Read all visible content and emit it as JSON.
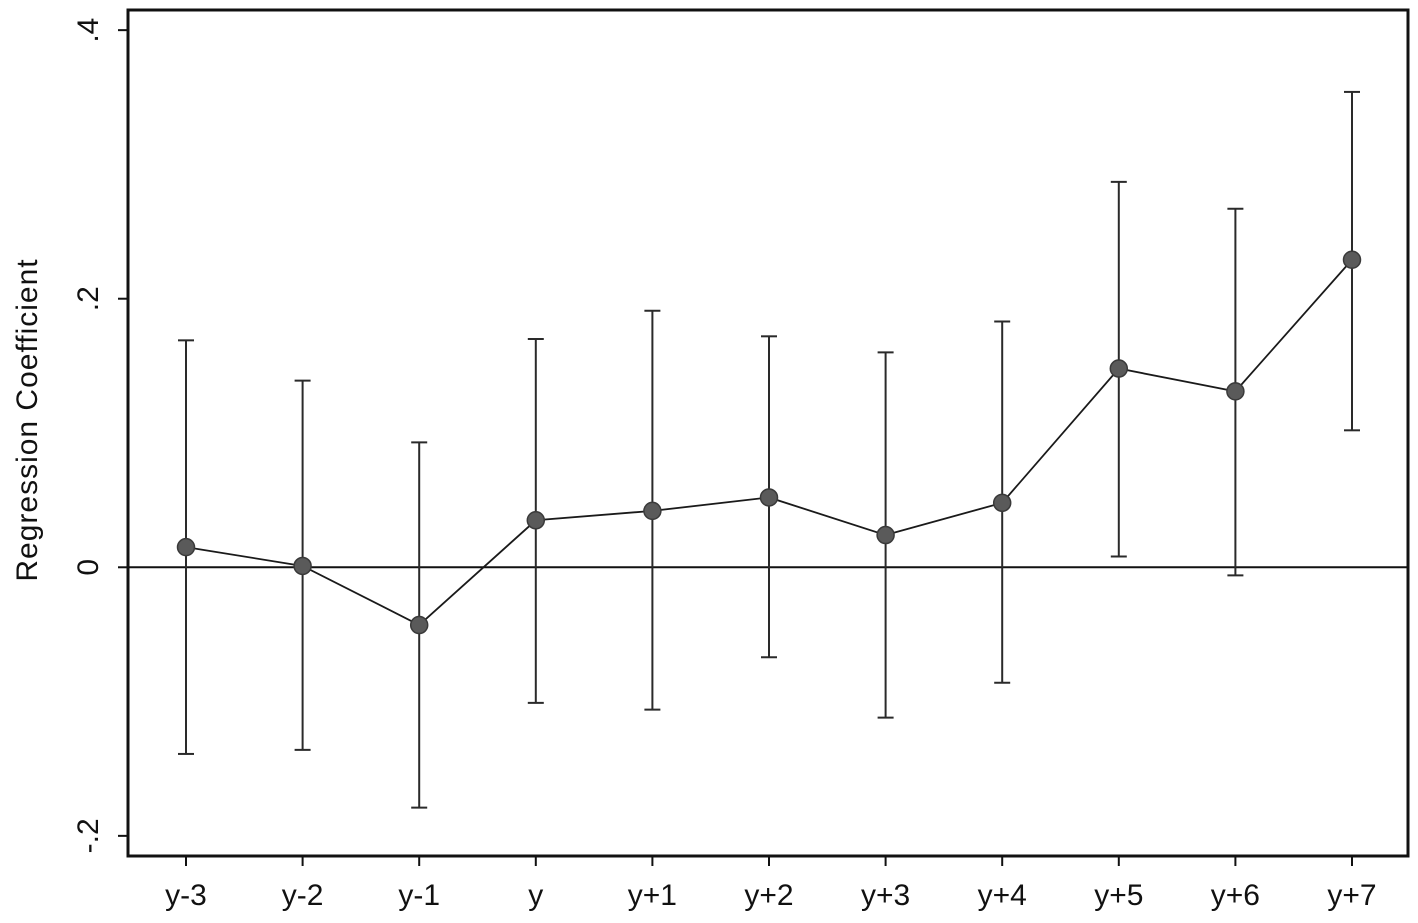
{
  "chart_data": {
    "type": "scatter",
    "title": "",
    "xlabel": "",
    "ylabel": "Regression Coefficient",
    "categories": [
      "y-3",
      "y-2",
      "y-1",
      "y",
      "y+1",
      "y+2",
      "y+3",
      "y+4",
      "y+5",
      "y+6",
      "y+7"
    ],
    "y_ticks": [
      -0.2,
      0,
      0.2,
      0.4
    ],
    "y_tick_labels": [
      "-.2",
      "0",
      ".2",
      ".4"
    ],
    "ylim": [
      -0.215,
      0.415
    ],
    "grid": false,
    "reference_line_y": 0,
    "connected_points": true,
    "series": [
      {
        "values": [
          0.015,
          0.001,
          -0.043,
          0.035,
          0.042,
          0.052,
          0.024,
          0.048,
          0.148,
          0.131,
          0.229
        ],
        "ci_lower": [
          -0.139,
          -0.136,
          -0.179,
          -0.101,
          -0.106,
          -0.067,
          -0.112,
          -0.086,
          0.008,
          -0.006,
          0.102
        ],
        "ci_upper": [
          0.169,
          0.139,
          0.093,
          0.17,
          0.191,
          0.172,
          0.16,
          0.183,
          0.287,
          0.267,
          0.354
        ]
      }
    ],
    "colors": {
      "line": "#1a1a1a",
      "errorbar": "#2a2a2a",
      "point_fill": "#5a5a5a",
      "point_stroke": "#3a3a3a",
      "frame": "#111111",
      "zero_line": "#111111"
    }
  }
}
